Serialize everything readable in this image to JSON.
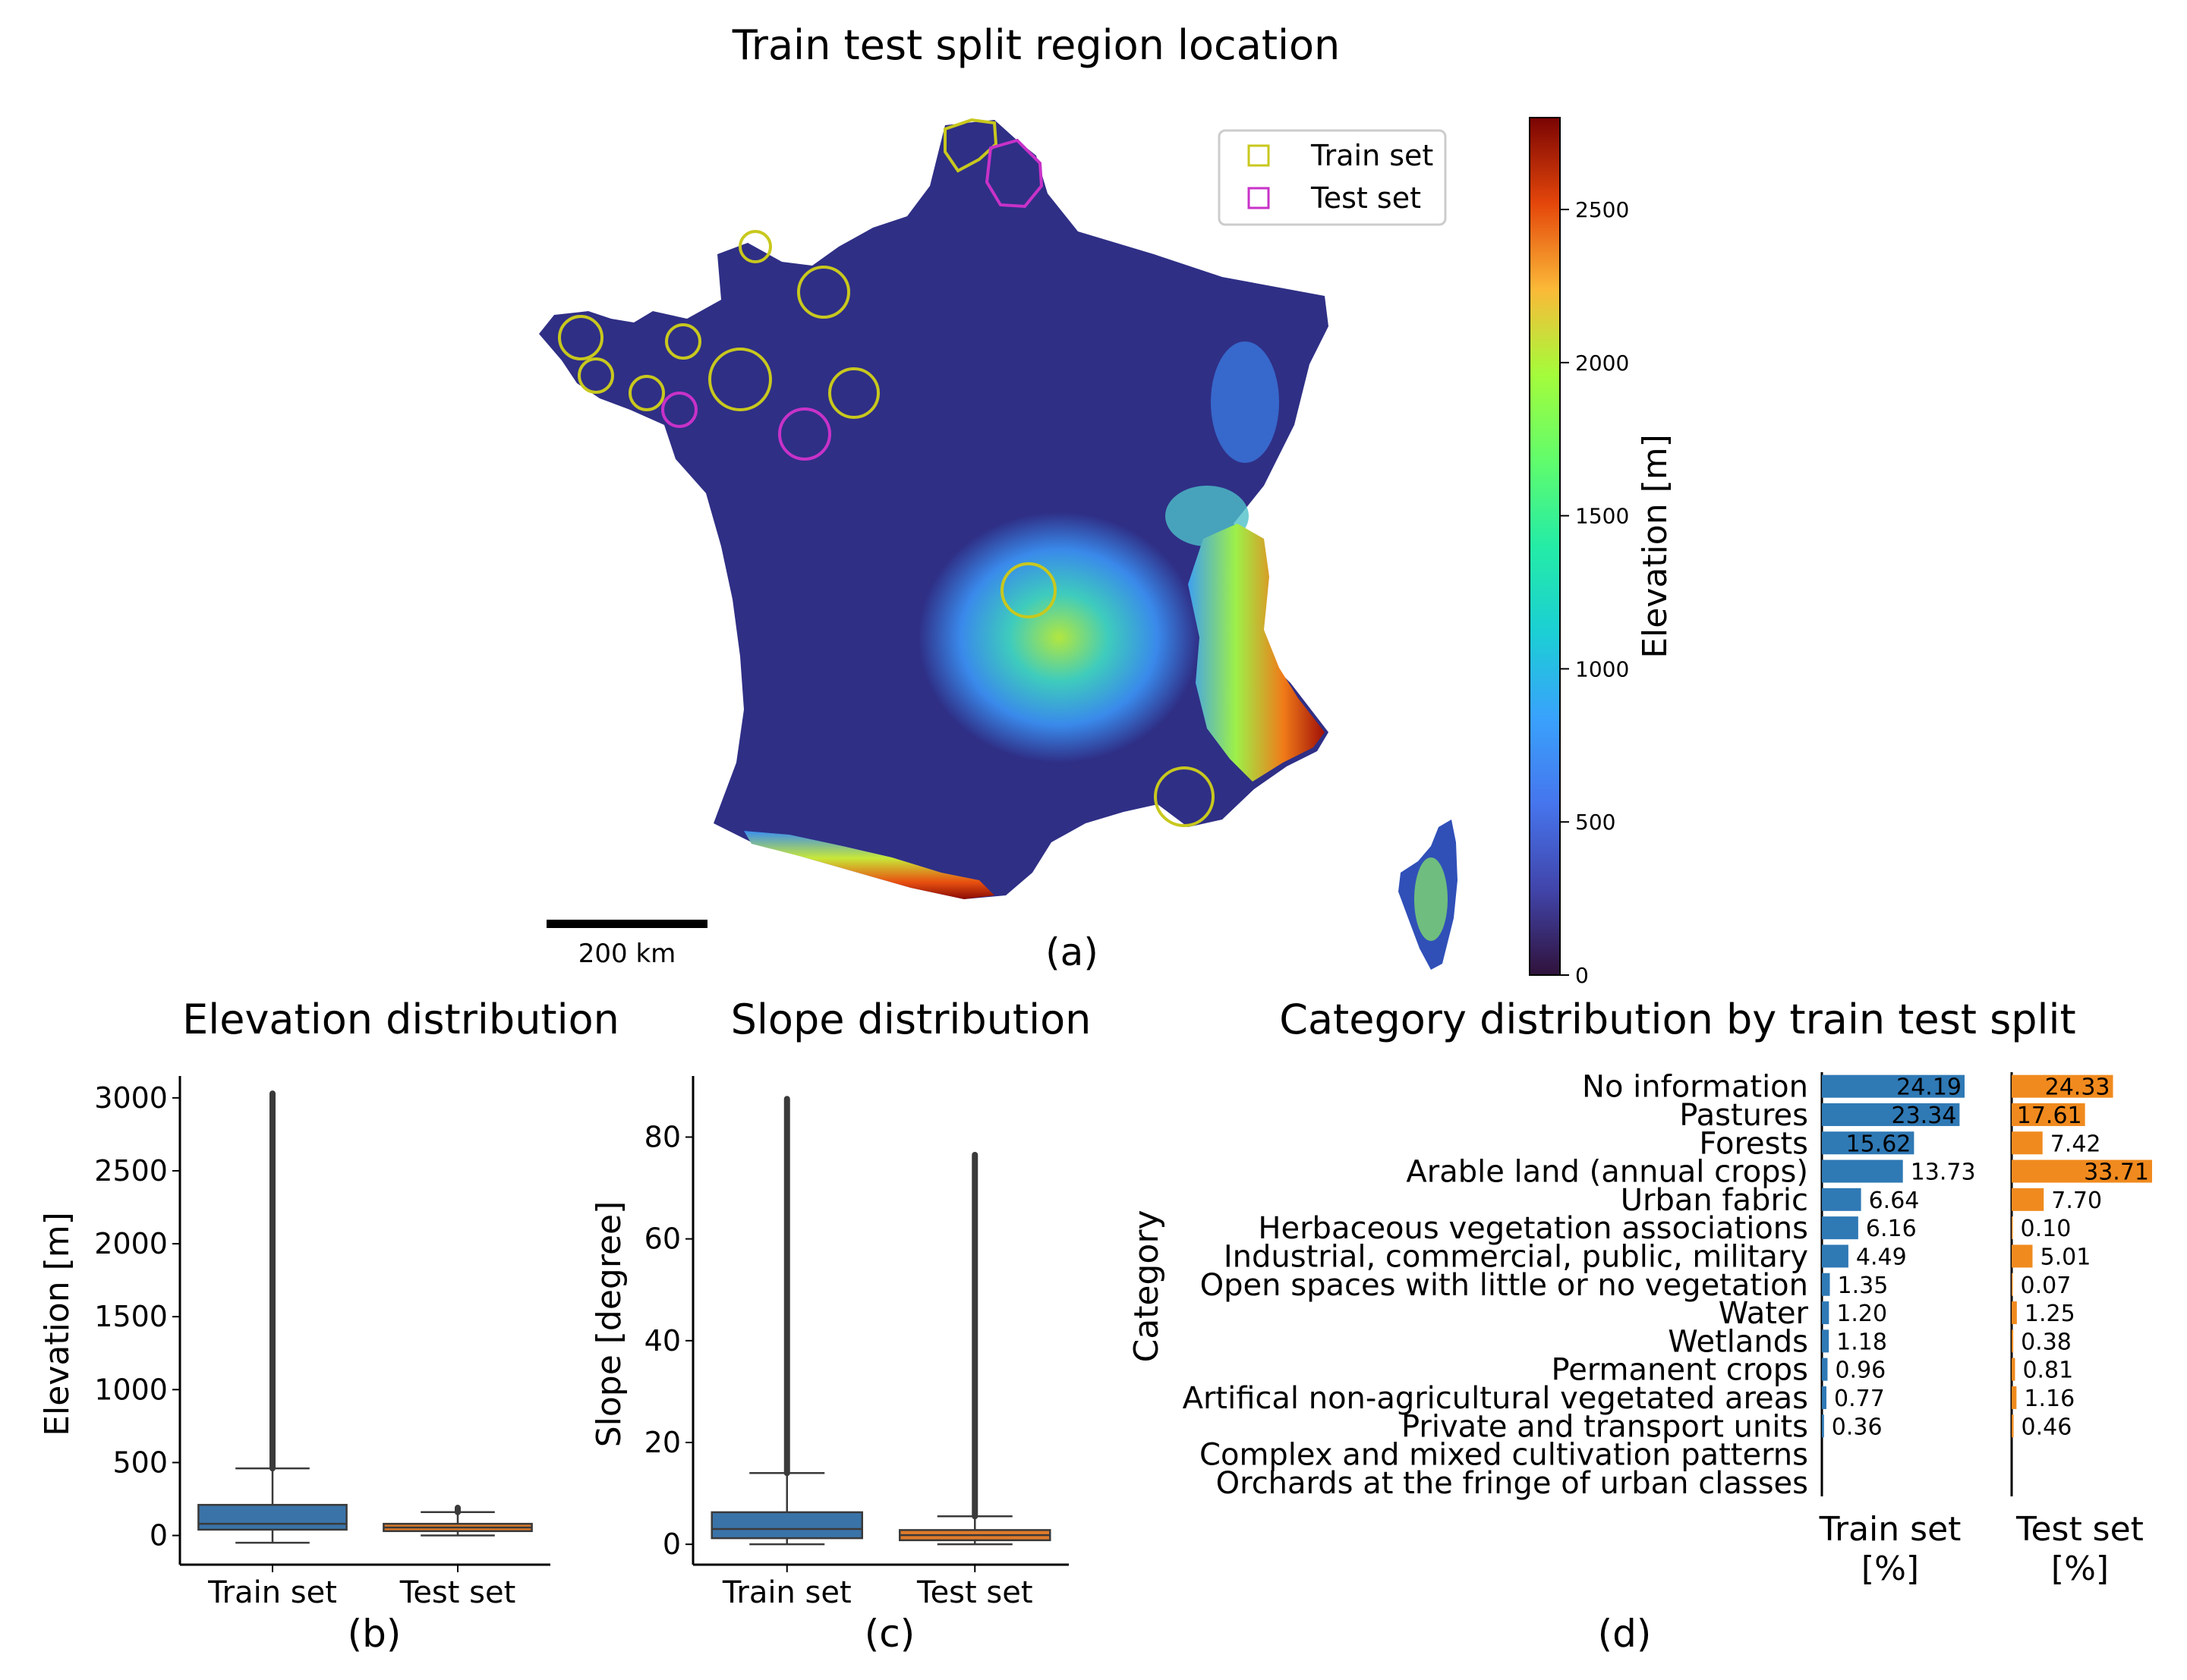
{
  "map": {
    "title": "Train test split region location",
    "legend": [
      "Train set",
      "Test set"
    ],
    "colorbar_label": "Elevation [m]",
    "colorbar_ticks": [
      0,
      500,
      1000,
      1500,
      2000,
      2500
    ],
    "colorbar_range": [
      0,
      2800
    ],
    "scalebar_label": "200 km",
    "panel_label": "(a)",
    "colors": {
      "train": "#c8c81e",
      "test": "#c832c8",
      "land_low": "#30123b",
      "land_mid": "#3e6fd9",
      "land_high": "#7a0403"
    }
  },
  "chart_data": [
    {
      "type": "box",
      "title": "Elevation distribution",
      "ylabel": "Elevation [m]",
      "categories": [
        "Train set",
        "Test set"
      ],
      "yticks": [
        0,
        500,
        1000,
        1500,
        2000,
        2500,
        3000
      ],
      "ylim": [
        -200,
        3150
      ],
      "boxes": [
        {
          "name": "Train set",
          "whisker_low": -50,
          "q1": 40,
          "median": 80,
          "q3": 210,
          "whisker_high": 460,
          "outlier_max": 3030,
          "color": "#3a73a8"
        },
        {
          "name": "Test set",
          "whisker_low": 0,
          "q1": 30,
          "median": 55,
          "q3": 80,
          "whisker_high": 160,
          "outlier_max": 190,
          "color": "#e07b2a"
        }
      ],
      "panel_label": "(b)"
    },
    {
      "type": "box",
      "title": "Slope distribution",
      "ylabel": "Slope [degree]",
      "categories": [
        "Train set",
        "Test set"
      ],
      "yticks": [
        0,
        20,
        40,
        60,
        80
      ],
      "ylim": [
        -4,
        92
      ],
      "boxes": [
        {
          "name": "Train set",
          "whisker_low": 0,
          "q1": 1.2,
          "median": 3,
          "q3": 6.3,
          "whisker_high": 14,
          "outlier_max": 87.5,
          "color": "#3a73a8"
        },
        {
          "name": "Test set",
          "whisker_low": 0,
          "q1": 0.8,
          "median": 1.8,
          "q3": 2.8,
          "whisker_high": 5.5,
          "outlier_max": 76.5,
          "color": "#e07b2a"
        }
      ],
      "panel_label": "(c)"
    },
    {
      "type": "bar",
      "orientation": "horizontal",
      "title": "Category distribution by train test split",
      "ylabel": "Category",
      "categories": [
        "No information",
        "Pastures",
        "Forests",
        "Arable land (annual crops)",
        "Urban fabric",
        "Herbaceous vegetation associations",
        "Industrial, commercial, public, military",
        "Open spaces with little or no vegetation",
        "Water",
        "Wetlands",
        "Permanent crops",
        "Artifical non-agricultural vegetated areas",
        "Private and transport units",
        "Complex and mixed cultivation patterns",
        "Orchards at the fringe of urban classes"
      ],
      "series": [
        {
          "name": "Train set",
          "xlabel": [
            "Train set",
            "[%]"
          ],
          "color": "#2f79b5",
          "values": [
            24.19,
            23.34,
            15.62,
            13.73,
            6.64,
            6.16,
            4.49,
            1.35,
            1.2,
            1.18,
            0.96,
            0.77,
            0.36,
            null,
            null
          ],
          "labels": [
            "24.19",
            "23.34",
            "15.62",
            "13.73",
            "6.64",
            "6.16",
            "4.49",
            "1.35",
            "1.20",
            "1.18",
            "0.96",
            "0.77",
            "0.36",
            "",
            ""
          ]
        },
        {
          "name": "Test set",
          "xlabel": [
            "Test set",
            "[%]"
          ],
          "color": "#f08a1e",
          "values": [
            24.33,
            17.61,
            7.42,
            33.71,
            7.7,
            0.1,
            5.01,
            0.07,
            1.25,
            0.38,
            0.81,
            1.16,
            0.46,
            null,
            null
          ],
          "labels": [
            "24.33",
            "17.61",
            "7.42",
            "33.71",
            "7.70",
            "0.10",
            "5.01",
            "0.07",
            "1.25",
            "0.38",
            "0.81",
            "1.16",
            "0.46",
            "",
            ""
          ]
        }
      ],
      "panel_label": "(d)"
    }
  ]
}
